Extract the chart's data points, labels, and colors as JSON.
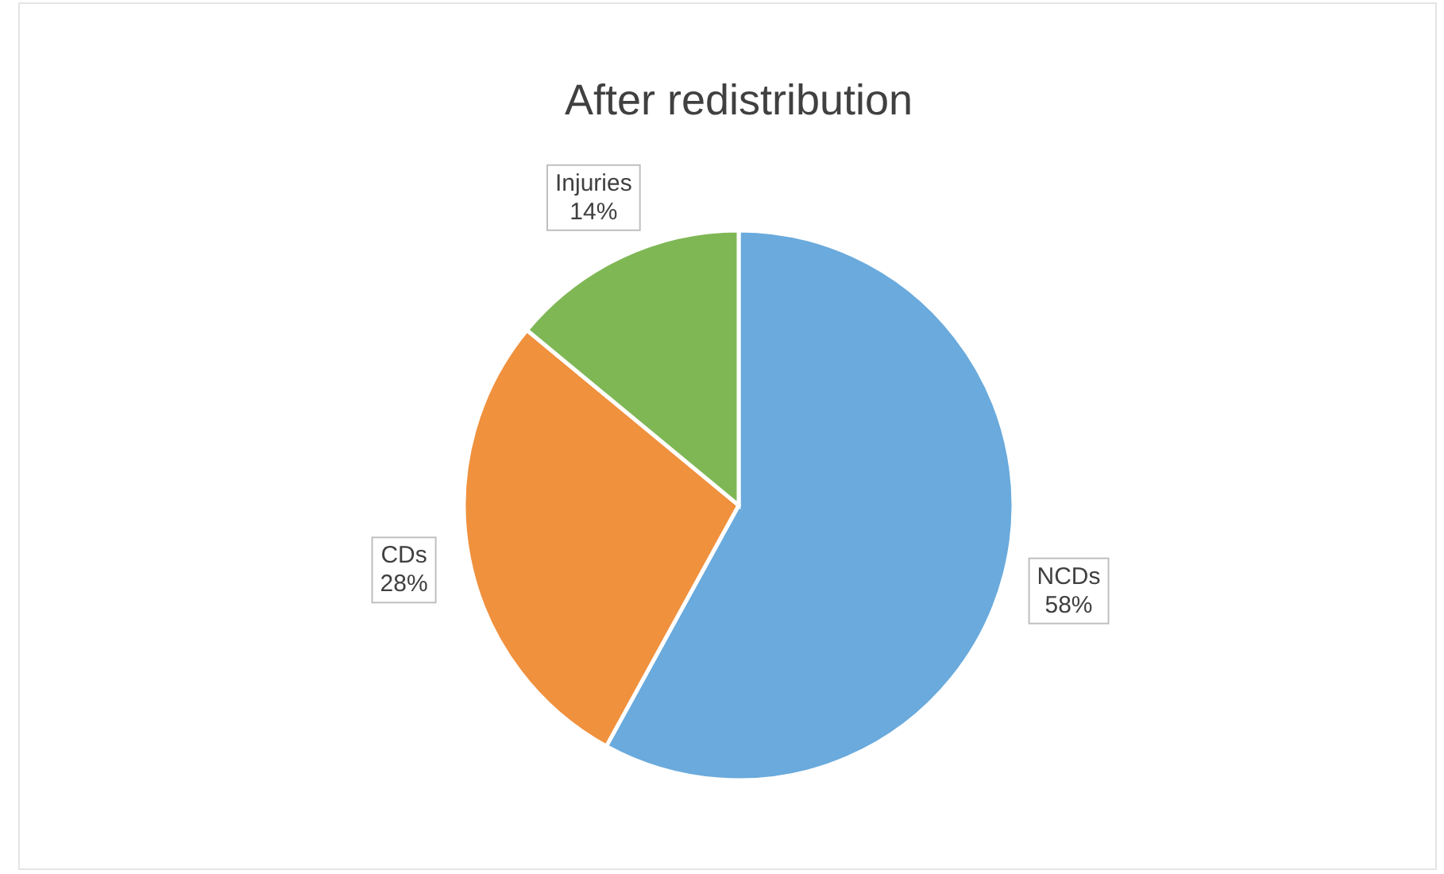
{
  "chart_data": {
    "type": "pie",
    "title": "After redistribution",
    "categories": [
      "NCDs",
      "CDs",
      "Injuries"
    ],
    "values": [
      58,
      28,
      14
    ],
    "colors": [
      "#6aaadc",
      "#f0913e",
      "#7fb755"
    ],
    "value_labels": [
      "58%",
      "28%",
      "14%"
    ]
  }
}
